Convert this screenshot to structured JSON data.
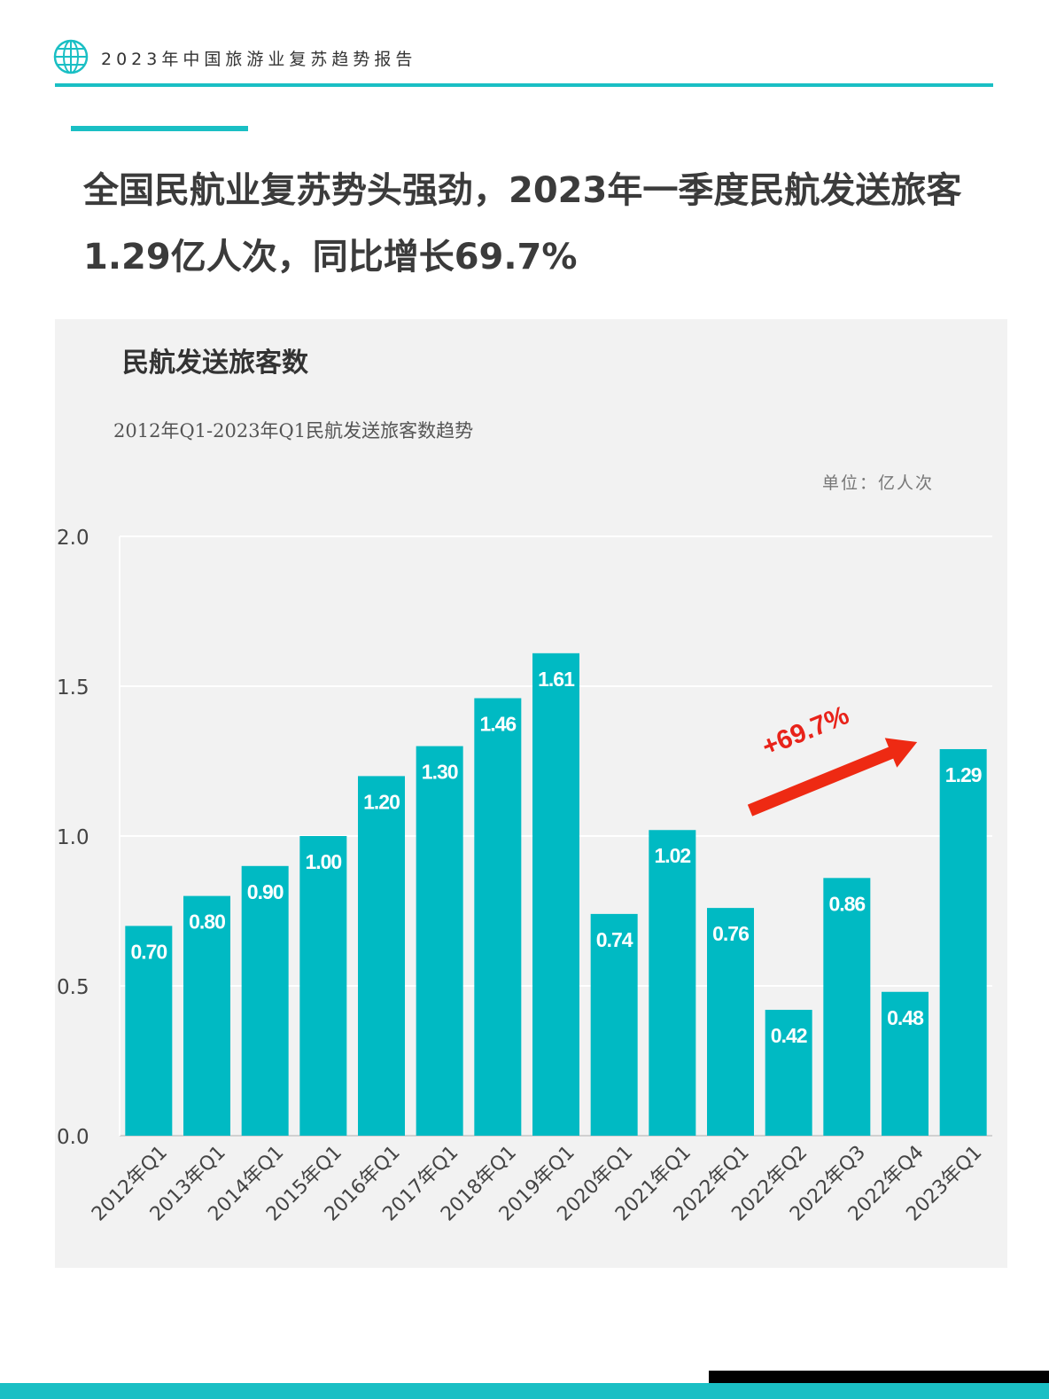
{
  "header": {
    "logo_icon": "globe-icon",
    "title": "2023年中国旅游业复苏趋势报告"
  },
  "headline": {
    "text": "全国民航业复苏势头强劲，2023年一季度民航发送旅客1.29亿人次，同比增长69.7%"
  },
  "colors": {
    "accent": "#1abfc4",
    "bar": "#00bac3",
    "arrow": "#ee2a13",
    "annotation": "#e8231a"
  },
  "chart_data": {
    "type": "bar",
    "title": "民航发送旅客数",
    "subtitle": "2012年Q1-2023年Q1民航发送旅客数趋势",
    "unit": "单位：亿人次",
    "categories": [
      "2012年Q1",
      "2013年Q1",
      "2014年Q1",
      "2015年Q1",
      "2016年Q1",
      "2017年Q1",
      "2018年Q1",
      "2019年Q1",
      "2020年Q1",
      "2021年Q1",
      "2022年Q1",
      "2022年Q2",
      "2022年Q3",
      "2022年Q4",
      "2023年Q1"
    ],
    "values": [
      0.7,
      0.8,
      0.9,
      1.0,
      1.2,
      1.3,
      1.46,
      1.61,
      0.74,
      1.02,
      0.76,
      0.42,
      0.86,
      0.48,
      1.29
    ],
    "data_labels": [
      "0.70",
      "0.80",
      "0.90",
      "1.00",
      "1.20",
      "1.30",
      "1.46",
      "1.61",
      "0.74",
      "1.02",
      "0.76",
      "0.42",
      "0.86",
      "0.48",
      "1.29"
    ],
    "yticks": [
      "0.0",
      "0.5",
      "1.0",
      "1.5",
      "2.0"
    ],
    "ylim": [
      0,
      2.0
    ],
    "grid": true,
    "annotation": {
      "text": "+69.7%",
      "from_category": "2022年Q1",
      "to_category": "2023年Q1"
    }
  }
}
